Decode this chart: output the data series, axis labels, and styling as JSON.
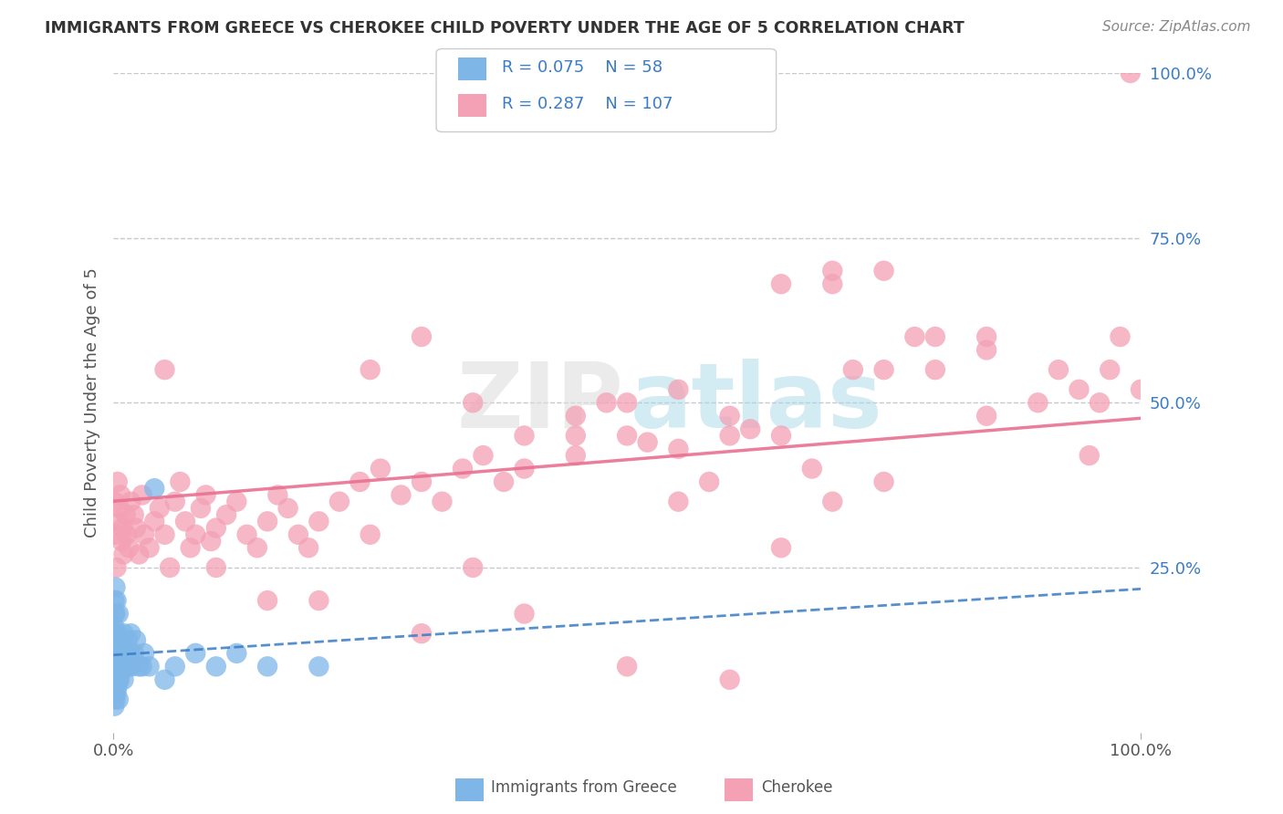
{
  "title": "IMMIGRANTS FROM GREECE VS CHEROKEE CHILD POVERTY UNDER THE AGE OF 5 CORRELATION CHART",
  "source": "Source: ZipAtlas.com",
  "ylabel": "Child Poverty Under the Age of 5",
  "blue_R": 0.075,
  "blue_N": 58,
  "pink_R": 0.287,
  "pink_N": 107,
  "blue_color": "#7EB6E8",
  "pink_color": "#F4A0B5",
  "blue_line_color": "#3A7CC5",
  "pink_line_color": "#E87090",
  "background_color": "#FFFFFF",
  "grid_color": "#C8C8D0",
  "title_color": "#333333",
  "legend_text_color": "#3A7CC5",
  "xlim": [
    0.0,
    1.0
  ],
  "ylim": [
    0.0,
    1.0
  ],
  "blue_scatter_x": [
    0.001,
    0.001,
    0.001,
    0.001,
    0.001,
    0.001,
    0.001,
    0.001,
    0.001,
    0.002,
    0.002,
    0.002,
    0.002,
    0.002,
    0.002,
    0.002,
    0.003,
    0.003,
    0.003,
    0.003,
    0.003,
    0.004,
    0.004,
    0.004,
    0.005,
    0.005,
    0.005,
    0.005,
    0.005,
    0.006,
    0.006,
    0.007,
    0.007,
    0.008,
    0.009,
    0.01,
    0.01,
    0.012,
    0.013,
    0.014,
    0.015,
    0.016,
    0.017,
    0.018,
    0.02,
    0.022,
    0.025,
    0.028,
    0.03,
    0.035,
    0.04,
    0.05,
    0.06,
    0.08,
    0.1,
    0.12,
    0.15,
    0.2
  ],
  "blue_scatter_y": [
    0.04,
    0.06,
    0.08,
    0.1,
    0.12,
    0.14,
    0.16,
    0.18,
    0.2,
    0.05,
    0.08,
    0.1,
    0.12,
    0.15,
    0.18,
    0.22,
    0.06,
    0.08,
    0.12,
    0.15,
    0.2,
    0.07,
    0.1,
    0.15,
    0.05,
    0.08,
    0.1,
    0.14,
    0.18,
    0.08,
    0.12,
    0.09,
    0.13,
    0.1,
    0.12,
    0.08,
    0.15,
    0.1,
    0.12,
    0.14,
    0.1,
    0.12,
    0.15,
    0.1,
    0.12,
    0.14,
    0.1,
    0.1,
    0.12,
    0.1,
    0.37,
    0.08,
    0.1,
    0.12,
    0.1,
    0.12,
    0.1,
    0.1
  ],
  "pink_scatter_x": [
    0.001,
    0.002,
    0.003,
    0.004,
    0.005,
    0.006,
    0.007,
    0.008,
    0.009,
    0.01,
    0.012,
    0.013,
    0.015,
    0.017,
    0.02,
    0.022,
    0.025,
    0.028,
    0.03,
    0.035,
    0.04,
    0.045,
    0.05,
    0.055,
    0.06,
    0.065,
    0.07,
    0.075,
    0.08,
    0.085,
    0.09,
    0.095,
    0.1,
    0.11,
    0.12,
    0.13,
    0.14,
    0.15,
    0.16,
    0.17,
    0.18,
    0.19,
    0.2,
    0.22,
    0.24,
    0.26,
    0.28,
    0.3,
    0.32,
    0.34,
    0.36,
    0.38,
    0.4,
    0.45,
    0.5,
    0.55,
    0.6,
    0.65,
    0.7,
    0.75,
    0.8,
    0.85,
    0.9,
    0.92,
    0.94,
    0.96,
    0.97,
    0.98,
    0.99,
    1.0,
    0.25,
    0.3,
    0.35,
    0.4,
    0.45,
    0.5,
    0.55,
    0.6,
    0.65,
    0.7,
    0.75,
    0.8,
    0.85,
    0.1,
    0.2,
    0.3,
    0.4,
    0.5,
    0.6,
    0.7,
    0.05,
    0.15,
    0.25,
    0.35,
    0.45,
    0.55,
    0.65,
    0.75,
    0.85,
    0.95,
    0.48,
    0.52,
    0.58,
    0.62,
    0.68,
    0.72,
    0.78
  ],
  "pink_scatter_y": [
    0.35,
    0.3,
    0.25,
    0.38,
    0.32,
    0.34,
    0.36,
    0.29,
    0.31,
    0.27,
    0.33,
    0.3,
    0.28,
    0.35,
    0.33,
    0.31,
    0.27,
    0.36,
    0.3,
    0.28,
    0.32,
    0.34,
    0.3,
    0.25,
    0.35,
    0.38,
    0.32,
    0.28,
    0.3,
    0.34,
    0.36,
    0.29,
    0.31,
    0.33,
    0.35,
    0.3,
    0.28,
    0.32,
    0.36,
    0.34,
    0.3,
    0.28,
    0.32,
    0.35,
    0.38,
    0.4,
    0.36,
    0.38,
    0.35,
    0.4,
    0.42,
    0.38,
    0.4,
    0.42,
    0.45,
    0.43,
    0.48,
    0.45,
    0.68,
    0.7,
    0.55,
    0.6,
    0.5,
    0.55,
    0.52,
    0.5,
    0.55,
    0.6,
    1.0,
    0.52,
    0.55,
    0.6,
    0.5,
    0.45,
    0.48,
    0.5,
    0.52,
    0.45,
    0.68,
    0.7,
    0.55,
    0.6,
    0.58,
    0.25,
    0.2,
    0.15,
    0.18,
    0.1,
    0.08,
    0.35,
    0.55,
    0.2,
    0.3,
    0.25,
    0.45,
    0.35,
    0.28,
    0.38,
    0.48,
    0.42,
    0.5,
    0.44,
    0.38,
    0.46,
    0.4,
    0.55,
    0.6
  ]
}
